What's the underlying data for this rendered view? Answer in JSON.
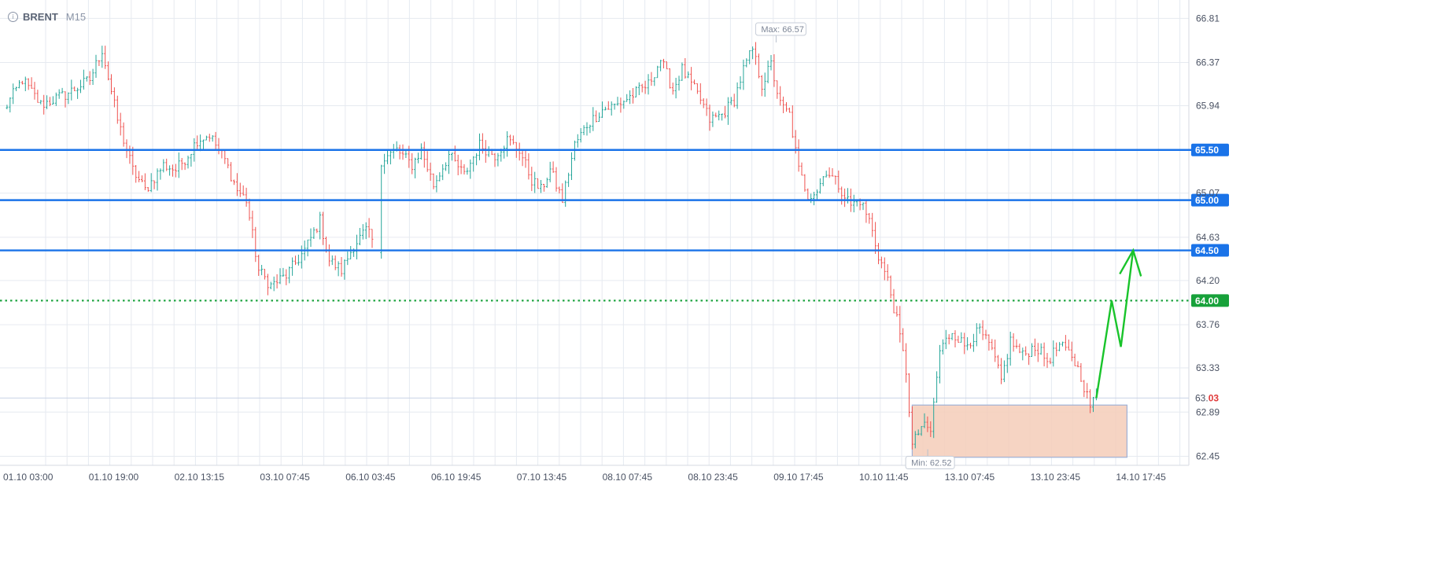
{
  "header": {
    "symbol": "BRENT",
    "timeframe": "M15",
    "info_icon": "info-icon"
  },
  "colors": {
    "up": "#26a69a",
    "down": "#ef5350",
    "grid": "#e6eaf0",
    "level": "#1a73e8",
    "target": "#17a13a",
    "zone_fill": "#f4cdb8",
    "zone_stroke": "#9fb1d6",
    "arrow": "#19c42b"
  },
  "chart_data": {
    "type": "ohlc",
    "symbol": "BRENT",
    "timeframe": "M15",
    "ylim": [
      62.36,
      66.93
    ],
    "y_ticks": [
      "66.81",
      "66.37",
      "65.94",
      "65.07",
      "64.63",
      "64.20",
      "63.76",
      "63.33",
      "62.89",
      "62.45"
    ],
    "x_ticks": [
      "01.10 03:00",
      "01.10 19:00",
      "02.10 13:15",
      "03.10 07:45",
      "06.10 03:45",
      "06.10 19:45",
      "07.10 13:45",
      "08.10 07:45",
      "08.10 23:45",
      "09.10 17:45",
      "10.10 11:45",
      "13.10 07:45",
      "13.10 23:45",
      "14.10 17:45"
    ],
    "series_anchors": [
      [
        0,
        65.9
      ],
      [
        6,
        66.2
      ],
      [
        12,
        65.95
      ],
      [
        20,
        66.05
      ],
      [
        28,
        66.2
      ],
      [
        32,
        66.5
      ],
      [
        37,
        65.8
      ],
      [
        42,
        65.3
      ],
      [
        46,
        65.1
      ],
      [
        52,
        65.35
      ],
      [
        56,
        65.3
      ],
      [
        60,
        65.45
      ],
      [
        63,
        65.6
      ],
      [
        67,
        65.65
      ],
      [
        72,
        65.4
      ],
      [
        76,
        65.1
      ],
      [
        79,
        65.0
      ],
      [
        83,
        64.3
      ],
      [
        87,
        64.15
      ],
      [
        92,
        64.25
      ],
      [
        98,
        64.5
      ],
      [
        103,
        64.8
      ],
      [
        106,
        64.4
      ],
      [
        110,
        64.3
      ],
      [
        114,
        64.55
      ],
      [
        118,
        64.7
      ],
      [
        122,
        64.5
      ],
      [
        123,
        65.4
      ],
      [
        128,
        65.5
      ],
      [
        133,
        65.35
      ],
      [
        136,
        65.5
      ],
      [
        140,
        65.15
      ],
      [
        145,
        65.45
      ],
      [
        150,
        65.25
      ],
      [
        155,
        65.55
      ],
      [
        160,
        65.45
      ],
      [
        164,
        65.6
      ],
      [
        168,
        65.5
      ],
      [
        172,
        65.2
      ],
      [
        175,
        65.1
      ],
      [
        178,
        65.3
      ],
      [
        182,
        65.0
      ],
      [
        186,
        65.55
      ],
      [
        190,
        65.75
      ],
      [
        195,
        65.9
      ],
      [
        200,
        65.95
      ],
      [
        205,
        66.05
      ],
      [
        210,
        66.15
      ],
      [
        214,
        66.4
      ],
      [
        218,
        66.1
      ],
      [
        221,
        66.3
      ],
      [
        224,
        66.15
      ],
      [
        227,
        66.0
      ],
      [
        230,
        65.8
      ],
      [
        234,
        65.85
      ],
      [
        238,
        66.0
      ],
      [
        241,
        66.3
      ],
      [
        244,
        66.5
      ],
      [
        247,
        66.15
      ],
      [
        250,
        66.35
      ],
      [
        253,
        65.95
      ],
      [
        256,
        65.85
      ],
      [
        259,
        65.3
      ],
      [
        262,
        65.05
      ],
      [
        265,
        65.1
      ],
      [
        268,
        65.3
      ],
      [
        272,
        65.15
      ],
      [
        276,
        64.95
      ],
      [
        279,
        65.0
      ],
      [
        282,
        64.8
      ],
      [
        285,
        64.45
      ],
      [
        288,
        64.2
      ],
      [
        291,
        63.8
      ],
      [
        294,
        63.3
      ],
      [
        296,
        62.55
      ],
      [
        299,
        62.75
      ],
      [
        302,
        62.7
      ],
      [
        305,
        63.5
      ],
      [
        309,
        63.7
      ],
      [
        313,
        63.55
      ],
      [
        318,
        63.7
      ],
      [
        322,
        63.5
      ],
      [
        325,
        63.2
      ],
      [
        328,
        63.6
      ],
      [
        332,
        63.45
      ],
      [
        336,
        63.55
      ],
      [
        340,
        63.4
      ],
      [
        344,
        63.55
      ],
      [
        348,
        63.45
      ],
      [
        351,
        63.25
      ],
      [
        354,
        62.95
      ],
      [
        356,
        63.03
      ]
    ],
    "bars": 357,
    "max_label": "Max: 66.57",
    "min_label": "Min: 62.52",
    "last_price": {
      "int_part": "63.",
      "frac_part": "03",
      "value": 63.03
    },
    "levels": [
      {
        "value": 65.5,
        "label": "65.50",
        "style": "solid"
      },
      {
        "value": 65.0,
        "label": "65.00",
        "style": "solid"
      },
      {
        "value": 64.5,
        "label": "64.50",
        "style": "solid"
      },
      {
        "value": 64.0,
        "label": "64.00",
        "style": "dotted"
      }
    ],
    "zone": {
      "from_bar": 296,
      "to_bar": 366,
      "low": 62.44,
      "high": 62.96
    },
    "projection": [
      [
        356,
        63.03
      ],
      [
        361,
        64.0
      ],
      [
        364,
        63.54
      ],
      [
        368,
        64.5
      ]
    ],
    "grid": true
  }
}
